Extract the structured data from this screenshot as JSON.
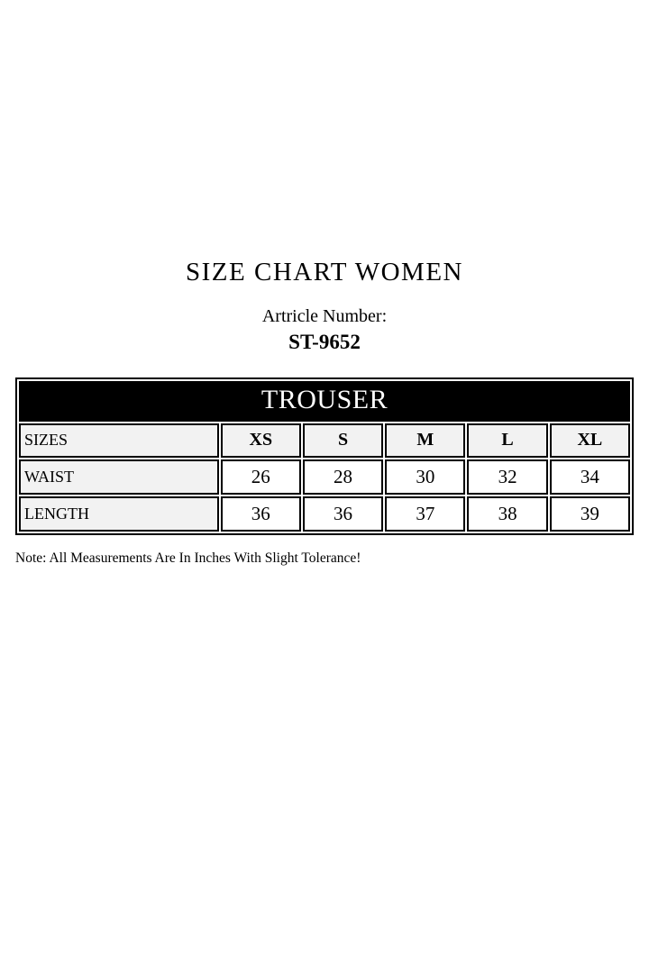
{
  "title": "SIZE CHART WOMEN",
  "article": {
    "label": "Artricle Number:",
    "number": "ST-9652"
  },
  "note": "Note: All Measurements Are In Inches With Slight Tolerance!",
  "colors": {
    "banner_bg": "#000000",
    "banner_text": "#ffffff",
    "label_cell_bg": "#f2f2f2",
    "value_cell_bg": "#ffffff",
    "border": "#000000",
    "page_bg": "#ffffff"
  },
  "chart_data": {
    "type": "table",
    "title": "TROUSER",
    "header": [
      "SIZES",
      "XS",
      "S",
      "M",
      "L",
      "XL"
    ],
    "rows": [
      {
        "label": "WAIST",
        "values": [
          "26",
          "28",
          "30",
          "32",
          "34"
        ]
      },
      {
        "label": "LENGTH",
        "values": [
          "36",
          "36",
          "37",
          "38",
          "39"
        ]
      }
    ]
  }
}
